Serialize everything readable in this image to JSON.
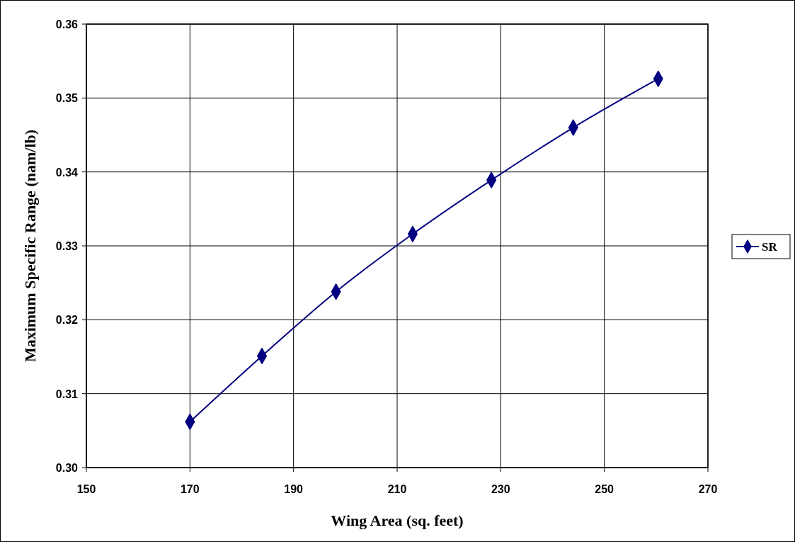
{
  "chart_data": {
    "type": "line",
    "xlabel": "Wing Area (sq. feet)",
    "ylabel": "Maximum Specific Range (nam/lb)",
    "x": [
      170,
      183.9,
      198.2,
      213,
      228.2,
      244,
      260.4
    ],
    "series": [
      {
        "name": "SR",
        "color": "#000080",
        "values": [
          0.3062,
          0.3151,
          0.3238,
          0.3316,
          0.3389,
          0.346,
          0.3526
        ]
      }
    ],
    "xlim": [
      150,
      270
    ],
    "xticks": [
      150,
      170,
      190,
      210,
      230,
      250,
      270
    ],
    "ylim": [
      0.3,
      0.36
    ],
    "yticks": [
      {
        "value": 0.3,
        "label": "0.30"
      },
      {
        "value": 0.31,
        "label": "0.31"
      },
      {
        "value": 0.32,
        "label": "0.32"
      },
      {
        "value": 0.33,
        "label": "0.33"
      },
      {
        "value": 0.34,
        "label": "0.34"
      },
      {
        "value": 0.35,
        "label": "0.35"
      },
      {
        "value": 0.36,
        "label": "0.36"
      }
    ],
    "grid": true,
    "legend": "right",
    "marker": "diamond",
    "line_style": "solid"
  }
}
